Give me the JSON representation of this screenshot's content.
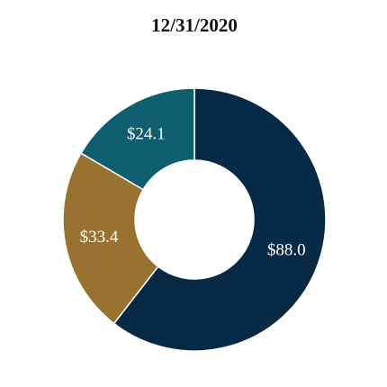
{
  "chart_data": {
    "type": "donut",
    "title": "12/31/2020",
    "values": [
      88.0,
      33.4,
      24.1
    ],
    "value_labels": [
      "$88.0",
      "$33.4",
      "$24.1"
    ],
    "colors": [
      "#062a45",
      "#9a7230",
      "#0e5e70"
    ]
  }
}
